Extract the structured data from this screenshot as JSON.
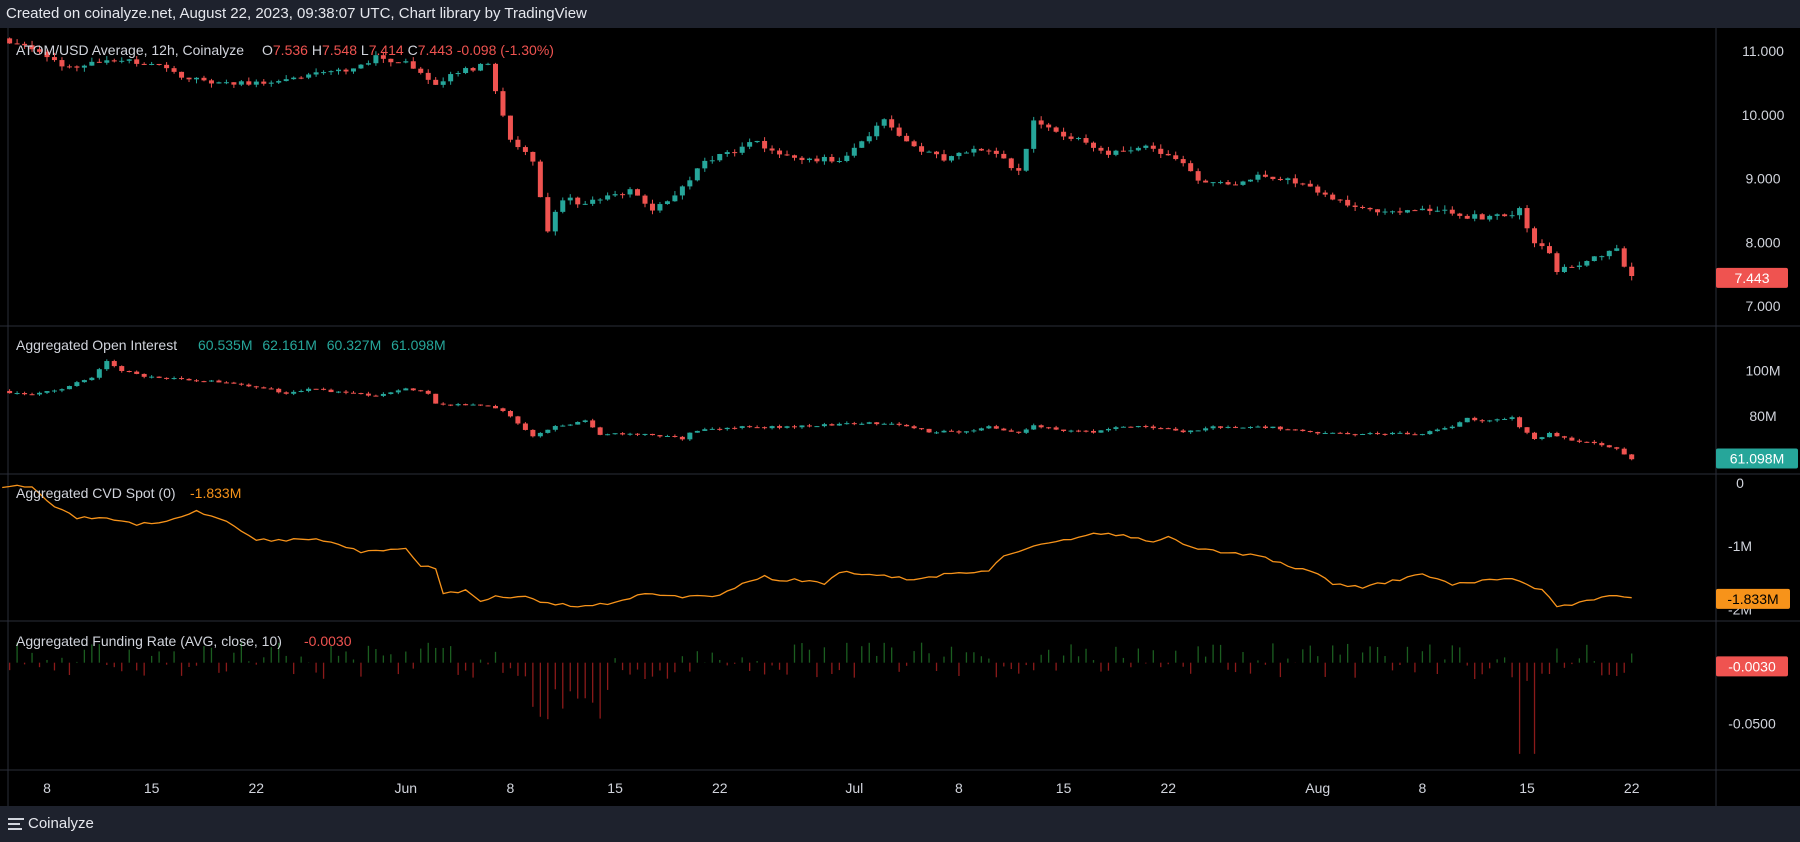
{
  "header": {
    "caption": "Created on coinalyze.net, August 22, 2023, 09:38:07 UTC, Chart library by TradingView"
  },
  "footer": {
    "brand": "Coinalyze",
    "menu_icon": "hamburger-menu-icon"
  },
  "colors": {
    "up": "#26a69a",
    "down": "#ef5350",
    "cvd": "#f7931a",
    "grid": "#2a2e39",
    "text": "#d1d4dc",
    "fr_up": "#1b5e20",
    "fr_down": "#8b1a1a"
  },
  "chart_data": [
    {
      "type": "candlestick",
      "panel": "price",
      "title": "ATOM/USD Average, 12h, Coinalyze",
      "ohlc_legend": {
        "o_label": "O",
        "o": "7.536",
        "h_label": "H",
        "h": "7.548",
        "l_label": "L",
        "l": "7.414",
        "c_label": "C",
        "c": "7.443",
        "change": "-0.098 (-1.30%)"
      },
      "last_value": "7.443",
      "y_ticks": [
        "11.000",
        "10.000",
        "9.000",
        "8.000",
        "7.000"
      ],
      "ylim": [
        6.75,
        11.3
      ],
      "x_range_days": [
        0,
        107
      ],
      "x_start_date": "2023-05-08",
      "anchors": [
        [
          -3,
          11.2
        ],
        [
          -1,
          11.05
        ],
        [
          1,
          10.75
        ],
        [
          3,
          10.8
        ],
        [
          5,
          10.85
        ],
        [
          7,
          10.8
        ],
        [
          9,
          10.6
        ],
        [
          11,
          10.5
        ],
        [
          14,
          10.5
        ],
        [
          17,
          10.6
        ],
        [
          20,
          10.7
        ],
        [
          22,
          10.9
        ],
        [
          24,
          10.8
        ],
        [
          26,
          10.5
        ],
        [
          28,
          10.7
        ],
        [
          29.5,
          10.8
        ],
        [
          30,
          10.4
        ],
        [
          31,
          9.6
        ],
        [
          32.5,
          9.3
        ],
        [
          33.5,
          8.2
        ],
        [
          34.5,
          8.7
        ],
        [
          36,
          8.6
        ],
        [
          39,
          8.8
        ],
        [
          40.5,
          8.5
        ],
        [
          42,
          8.7
        ],
        [
          44,
          9.3
        ],
        [
          46,
          9.4
        ],
        [
          47,
          9.6
        ],
        [
          49,
          9.4
        ],
        [
          51,
          9.3
        ],
        [
          53,
          9.3
        ],
        [
          55,
          9.7
        ],
        [
          56,
          9.9
        ],
        [
          58,
          9.5
        ],
        [
          60,
          9.3
        ],
        [
          62,
          9.5
        ],
        [
          64,
          9.3
        ],
        [
          65,
          9.1
        ],
        [
          66,
          9.9
        ],
        [
          67,
          9.8
        ],
        [
          69,
          9.6
        ],
        [
          71,
          9.4
        ],
        [
          73,
          9.5
        ],
        [
          75,
          9.4
        ],
        [
          77,
          9.0
        ],
        [
          79,
          8.9
        ],
        [
          81,
          9.05
        ],
        [
          83,
          9.0
        ],
        [
          85,
          8.8
        ],
        [
          87,
          8.6
        ],
        [
          89,
          8.5
        ],
        [
          91,
          8.5
        ],
        [
          93,
          8.5
        ],
        [
          95,
          8.4
        ],
        [
          97,
          8.4
        ],
        [
          98.5,
          8.5
        ],
        [
          99.5,
          8.0
        ],
        [
          100.5,
          7.8
        ],
        [
          101,
          7.55
        ],
        [
          102,
          7.6
        ],
        [
          104,
          7.8
        ],
        [
          105,
          7.9
        ],
        [
          105.5,
          7.6
        ],
        [
          106,
          7.45
        ]
      ]
    },
    {
      "type": "candlestick",
      "panel": "open_interest",
      "title": "Aggregated Open Interest",
      "ohlc_legend": {
        "o": "60.535M",
        "h": "62.161M",
        "l": "60.327M",
        "c": "61.098M"
      },
      "last_value": "61.098M",
      "y_ticks": [
        "100M",
        "80M"
      ],
      "ylim": [
        56,
        118
      ],
      "anchors": [
        [
          -3,
          91
        ],
        [
          -1,
          89
        ],
        [
          1,
          92
        ],
        [
          3,
          97
        ],
        [
          4,
          104
        ],
        [
          5,
          100
        ],
        [
          7,
          97
        ],
        [
          9,
          96
        ],
        [
          12,
          95
        ],
        [
          14,
          93
        ],
        [
          16,
          90
        ],
        [
          18,
          92
        ],
        [
          20,
          90
        ],
        [
          22,
          89
        ],
        [
          24,
          92
        ],
        [
          25.5,
          90
        ],
        [
          26,
          85
        ],
        [
          28,
          85
        ],
        [
          29.5,
          84
        ],
        [
          30.5,
          82
        ],
        [
          31.5,
          77
        ],
        [
          32.5,
          71
        ],
        [
          34,
          75
        ],
        [
          36,
          78
        ],
        [
          37,
          72
        ],
        [
          39,
          72
        ],
        [
          41,
          71
        ],
        [
          42.5,
          70
        ],
        [
          43,
          73
        ],
        [
          46,
          75
        ],
        [
          49,
          75
        ],
        [
          52,
          76
        ],
        [
          55,
          77
        ],
        [
          57,
          76
        ],
        [
          59,
          73
        ],
        [
          61,
          73
        ],
        [
          63,
          75
        ],
        [
          65,
          72
        ],
        [
          66,
          76
        ],
        [
          68,
          73
        ],
        [
          70,
          73
        ],
        [
          72,
          75
        ],
        [
          74,
          75
        ],
        [
          76,
          73
        ],
        [
          78,
          75
        ],
        [
          80,
          75
        ],
        [
          82,
          75
        ],
        [
          84,
          73
        ],
        [
          86,
          72
        ],
        [
          88,
          72
        ],
        [
          90,
          72
        ],
        [
          92,
          72
        ],
        [
          94,
          75
        ],
        [
          95,
          79
        ],
        [
          96,
          78
        ],
        [
          98,
          79
        ],
        [
          98.5,
          75
        ],
        [
          99.5,
          70
        ],
        [
          100.5,
          72
        ],
        [
          102,
          69
        ],
        [
          104,
          67
        ],
        [
          105,
          65
        ],
        [
          106,
          61
        ]
      ]
    },
    {
      "type": "line",
      "panel": "cvd_spot",
      "title": "Aggregated CVD Spot (0)",
      "current": "-1.833M",
      "last_value": "-1.833M",
      "y_ticks": [
        "0",
        "-1M",
        "-2M"
      ],
      "ylim": [
        -2.12,
        0.08
      ],
      "values_m": [
        [
          -3,
          -0.05
        ],
        [
          -1,
          -0.05
        ],
        [
          0,
          -0.3
        ],
        [
          2,
          -0.55
        ],
        [
          4,
          -0.55
        ],
        [
          6,
          -0.65
        ],
        [
          8,
          -0.6
        ],
        [
          10,
          -0.45
        ],
        [
          12,
          -0.6
        ],
        [
          14,
          -0.9
        ],
        [
          16,
          -0.9
        ],
        [
          18,
          -0.9
        ],
        [
          20,
          -1.0
        ],
        [
          21,
          -1.1
        ],
        [
          23,
          -1.05
        ],
        [
          24,
          -1.05
        ],
        [
          25,
          -1.3
        ],
        [
          26,
          -1.35
        ],
        [
          26.5,
          -1.75
        ],
        [
          28,
          -1.7
        ],
        [
          29,
          -1.88
        ],
        [
          30,
          -1.8
        ],
        [
          31,
          -1.83
        ],
        [
          32,
          -1.78
        ],
        [
          33,
          -1.9
        ],
        [
          36,
          -1.95
        ],
        [
          38,
          -1.9
        ],
        [
          40,
          -1.75
        ],
        [
          42,
          -1.8
        ],
        [
          45,
          -1.78
        ],
        [
          46,
          -1.65
        ],
        [
          48,
          -1.48
        ],
        [
          49,
          -1.55
        ],
        [
          50,
          -1.52
        ],
        [
          52,
          -1.6
        ],
        [
          53,
          -1.4
        ],
        [
          55,
          -1.45
        ],
        [
          57,
          -1.5
        ],
        [
          58,
          -1.55
        ],
        [
          60,
          -1.45
        ],
        [
          63,
          -1.38
        ],
        [
          64,
          -1.15
        ],
        [
          66,
          -1.0
        ],
        [
          68,
          -0.9
        ],
        [
          70,
          -0.8
        ],
        [
          72,
          -0.82
        ],
        [
          74,
          -0.95
        ],
        [
          75,
          -0.85
        ],
        [
          77,
          -1.05
        ],
        [
          79,
          -1.1
        ],
        [
          81,
          -1.15
        ],
        [
          83,
          -1.3
        ],
        [
          85,
          -1.45
        ],
        [
          86,
          -1.6
        ],
        [
          88,
          -1.65
        ],
        [
          90,
          -1.55
        ],
        [
          92,
          -1.45
        ],
        [
          94,
          -1.6
        ],
        [
          96,
          -1.55
        ],
        [
          98,
          -1.5
        ],
        [
          100,
          -1.7
        ],
        [
          101,
          -1.95
        ],
        [
          102,
          -1.92
        ],
        [
          104,
          -1.8
        ],
        [
          105,
          -1.8
        ],
        [
          106,
          -1.833
        ]
      ]
    },
    {
      "type": "bar",
      "panel": "funding_rate",
      "title": "Aggregated Funding Rate (AVG, close, 10)",
      "current": "-0.0030",
      "last_value": "-0.0030",
      "y_ticks": [
        "-0.0500"
      ],
      "ylim": [
        -0.085,
        0.031
      ],
      "zero_line": 0,
      "min_value": -0.075
    }
  ]
}
